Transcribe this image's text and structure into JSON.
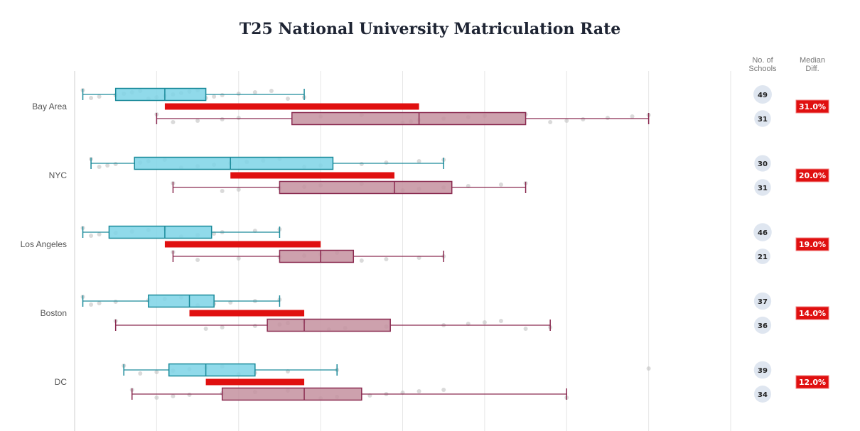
{
  "chart_data": {
    "type": "box",
    "title": "T25 National University Matriculation Rate",
    "xlim": [
      0,
      80
    ],
    "grid": true,
    "x_gridlines": [
      10,
      20,
      30,
      40,
      50,
      60,
      70,
      80
    ],
    "column_headers": {
      "count": "No. of Schools",
      "count_lines": [
        "No. of",
        "Schools"
      ],
      "diff": "Median Diff.",
      "diff_lines": [
        "Median",
        "Diff."
      ]
    },
    "colors": {
      "group_a_fill": "#7dd3e6",
      "group_a_stroke": "#1a8a9a",
      "group_b_fill": "#c4909f",
      "group_b_stroke": "#8a2a50",
      "diff_bar": "#e01010",
      "count_bubble": "#dfe6f0",
      "points": "#bbbbbb"
    },
    "regions": [
      {
        "label": "Bay Area",
        "median_diff": "31.0%",
        "a": {
          "count": 49,
          "min": 1,
          "q1": 5,
          "median": 11,
          "q3": 16,
          "max": 28,
          "points": [
            1,
            2,
            3,
            5,
            6,
            7,
            8,
            9,
            10,
            11,
            12,
            13,
            14,
            15,
            16,
            17,
            18,
            20,
            22,
            24,
            26,
            28
          ]
        },
        "b": {
          "count": 31,
          "min": 10,
          "q1": 26.5,
          "median": 42,
          "q3": 55,
          "max": 70,
          "points": [
            10,
            12,
            15,
            18,
            20,
            30,
            35,
            40,
            41,
            42,
            45,
            48,
            50,
            55,
            58,
            60,
            62,
            65,
            68,
            70
          ]
        }
      },
      {
        "label": "NYC",
        "median_diff": "20.0%",
        "a": {
          "count": 30,
          "min": 2,
          "q1": 7.3,
          "median": 19,
          "q3": 31.5,
          "max": 45,
          "points": [
            2,
            3,
            4,
            5,
            8,
            9,
            11,
            13,
            15,
            17,
            19,
            21,
            23,
            25,
            28,
            30,
            35,
            38,
            42,
            45
          ]
        },
        "b": {
          "count": 31,
          "min": 12,
          "q1": 25,
          "median": 39,
          "q3": 46,
          "max": 55,
          "points": [
            12,
            18,
            20,
            25,
            28,
            30,
            35,
            39,
            40,
            42,
            45,
            48,
            52,
            55
          ]
        }
      },
      {
        "label": "Los Angeles",
        "median_diff": "19.0%",
        "a": {
          "count": 46,
          "min": 1,
          "q1": 4.2,
          "median": 11,
          "q3": 16.7,
          "max": 25,
          "points": [
            1,
            2,
            3,
            5,
            7,
            9,
            11,
            13,
            15,
            17,
            18,
            22,
            25
          ]
        },
        "b": {
          "count": 21,
          "min": 12,
          "q1": 25,
          "median": 30,
          "q3": 34,
          "max": 45,
          "points": [
            12,
            15,
            20,
            25,
            28,
            30,
            32,
            35,
            38,
            42,
            45
          ]
        }
      },
      {
        "label": "Boston",
        "median_diff": "14.0%",
        "a": {
          "count": 37,
          "min": 1,
          "q1": 9,
          "median": 14,
          "q3": 17,
          "max": 25,
          "points": [
            1,
            2,
            3,
            5,
            9,
            11,
            13,
            15,
            17,
            19,
            22,
            25
          ]
        },
        "b": {
          "count": 36,
          "min": 5,
          "q1": 23.5,
          "median": 28,
          "q3": 38.5,
          "max": 58,
          "points": [
            5,
            16,
            18,
            22,
            25,
            26,
            28,
            31,
            33,
            38,
            45,
            48,
            50,
            52,
            55,
            58
          ]
        }
      },
      {
        "label": "DC",
        "median_diff": "12.0%",
        "a": {
          "count": 39,
          "min": 6,
          "q1": 11.5,
          "median": 16,
          "q3": 22,
          "max": 32,
          "points": [
            6,
            8,
            10,
            12,
            14,
            16,
            18,
            20,
            22,
            26,
            32,
            70
          ]
        },
        "b": {
          "count": 34,
          "min": 7,
          "q1": 18,
          "median": 28,
          "q3": 35,
          "max": 60,
          "points": [
            7,
            10,
            12,
            14,
            18,
            22,
            26,
            30,
            32,
            36,
            38,
            40,
            42,
            45,
            60
          ]
        }
      }
    ]
  }
}
